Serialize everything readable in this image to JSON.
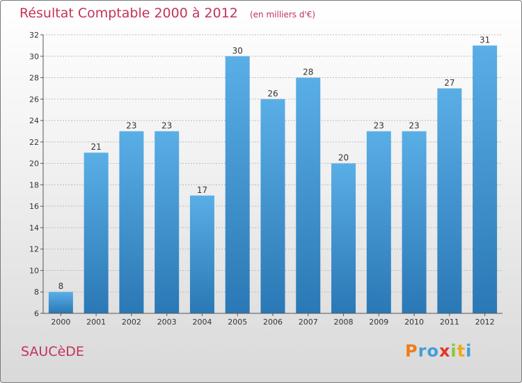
{
  "header": {
    "title": "Résultat Comptable 2000 à 2012",
    "subtitle": "(en milliers d'€)"
  },
  "footer": {
    "commune": "SAUCèDE",
    "logo_letters": [
      "P",
      "r",
      "o",
      "x",
      "i",
      "t",
      "i"
    ]
  },
  "colors": {
    "title": "#c4325a",
    "bar_top": "#5aaee6",
    "bar_bottom": "#2a78b5",
    "grid": "#bbbbbb",
    "logo": [
      "#f07d1a",
      "#3f9fd8",
      "#3f9fd8",
      "#e6332a",
      "#8cc63f",
      "#f0a81a",
      "#3f9fd8"
    ]
  },
  "chart_data": {
    "type": "bar",
    "title": "Résultat Comptable 2000 à 2012",
    "subtitle": "(en milliers d'€)",
    "categories": [
      "2000",
      "2001",
      "2002",
      "2003",
      "2004",
      "2005",
      "2006",
      "2007",
      "2008",
      "2009",
      "2010",
      "2011",
      "2012"
    ],
    "values": [
      8,
      21,
      23,
      23,
      17,
      30,
      26,
      28,
      20,
      23,
      23,
      27,
      31
    ],
    "ylim": [
      6,
      32
    ],
    "yticks": [
      6,
      8,
      10,
      12,
      14,
      16,
      18,
      20,
      22,
      24,
      26,
      28,
      30,
      32
    ],
    "grid": true,
    "data_labels": true
  }
}
